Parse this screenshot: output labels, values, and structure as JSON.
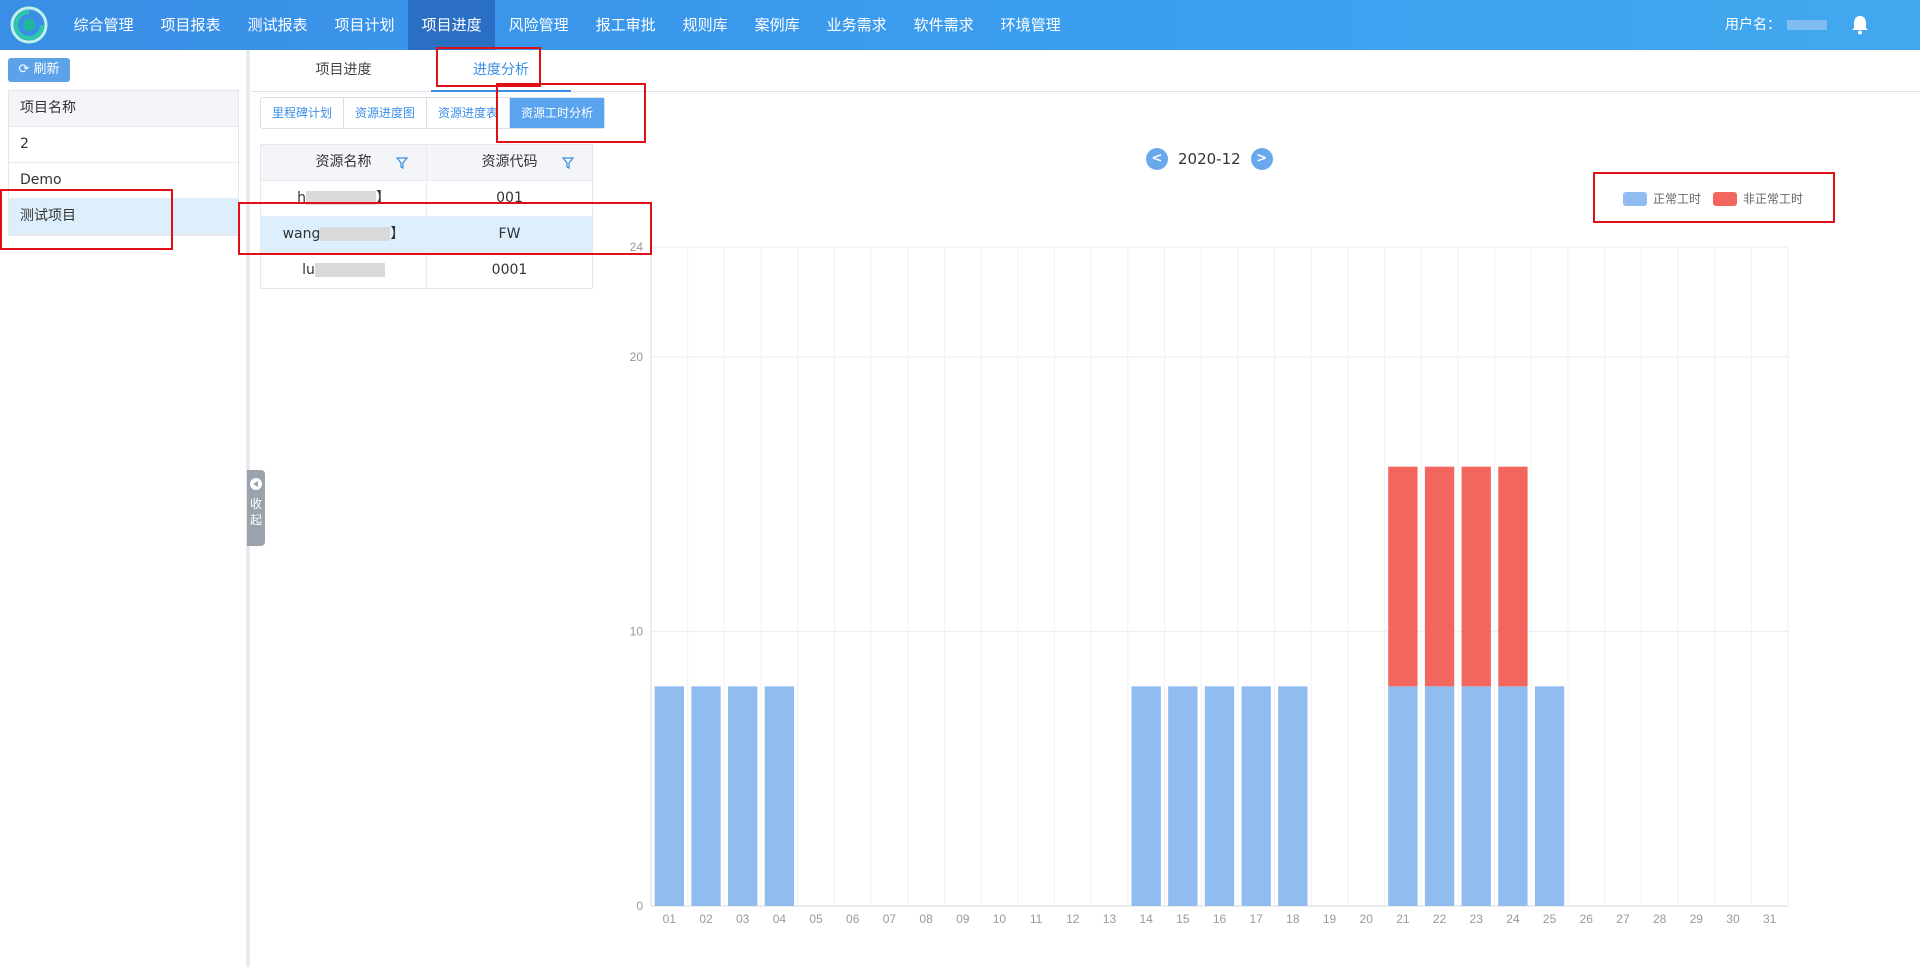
{
  "nav": {
    "items": [
      "综合管理",
      "项目报表",
      "测试报表",
      "项目计划",
      "项目进度",
      "风险管理",
      "报工审批",
      "规则库",
      "案例库",
      "业务需求",
      "软件需求",
      "环境管理"
    ],
    "active_index": 4,
    "user_label": "用户名："
  },
  "left": {
    "refresh_label": "刷新",
    "table_header": "项目名称",
    "projects": [
      "2",
      "Demo",
      "测试项目"
    ],
    "selected_project": "测试项目",
    "collapse_label": "收起"
  },
  "tabs": {
    "items": [
      "项目进度",
      "进度分析"
    ],
    "active": "进度分析"
  },
  "subtabs": {
    "items": [
      "里程碑计划",
      "资源进度图",
      "资源进度表",
      "资源工时分析"
    ],
    "active": "资源工时分析"
  },
  "resource_table": {
    "headers": [
      "资源名称",
      "资源代码"
    ],
    "rows": [
      {
        "name_prefix": "h",
        "name_suffix": "】",
        "code": "001"
      },
      {
        "name_prefix": "wang",
        "name_suffix": "】",
        "code": "FW"
      },
      {
        "name_prefix": "lu",
        "name_suffix": "",
        "code": "0001"
      }
    ],
    "selected_index": 1
  },
  "month_nav": {
    "prev": "<",
    "label": "2020-12",
    "next": ">"
  },
  "colors": {
    "normal": "#90bcef",
    "abnormal": "#f2665e",
    "accent": "#3a8ee6",
    "annotation": "#e10f17"
  },
  "chart_data": {
    "type": "bar",
    "stacked": true,
    "categories": [
      "01",
      "02",
      "03",
      "04",
      "05",
      "06",
      "07",
      "08",
      "09",
      "10",
      "11",
      "12",
      "13",
      "14",
      "15",
      "16",
      "17",
      "18",
      "19",
      "20",
      "21",
      "22",
      "23",
      "24",
      "25",
      "26",
      "27",
      "28",
      "29",
      "30",
      "31"
    ],
    "series": [
      {
        "name": "正常工时",
        "color": "#90bcef",
        "values": [
          8,
          8,
          8,
          8,
          0,
          0,
          0,
          0,
          0,
          0,
          0,
          0,
          0,
          8,
          8,
          8,
          8,
          8,
          0,
          0,
          8,
          8,
          8,
          8,
          8,
          0,
          0,
          0,
          0,
          0,
          0
        ]
      },
      {
        "name": "非正常工时",
        "color": "#f2665e",
        "values": [
          0,
          0,
          0,
          0,
          0,
          0,
          0,
          0,
          0,
          0,
          0,
          0,
          0,
          0,
          0,
          0,
          0,
          0,
          0,
          0,
          8,
          8,
          8,
          8,
          0,
          0,
          0,
          0,
          0,
          0,
          0
        ]
      }
    ],
    "yticks": [
      0,
      10,
      20,
      24
    ],
    "ylim": [
      0,
      24
    ],
    "grid": true,
    "legend_position": "top-right"
  }
}
